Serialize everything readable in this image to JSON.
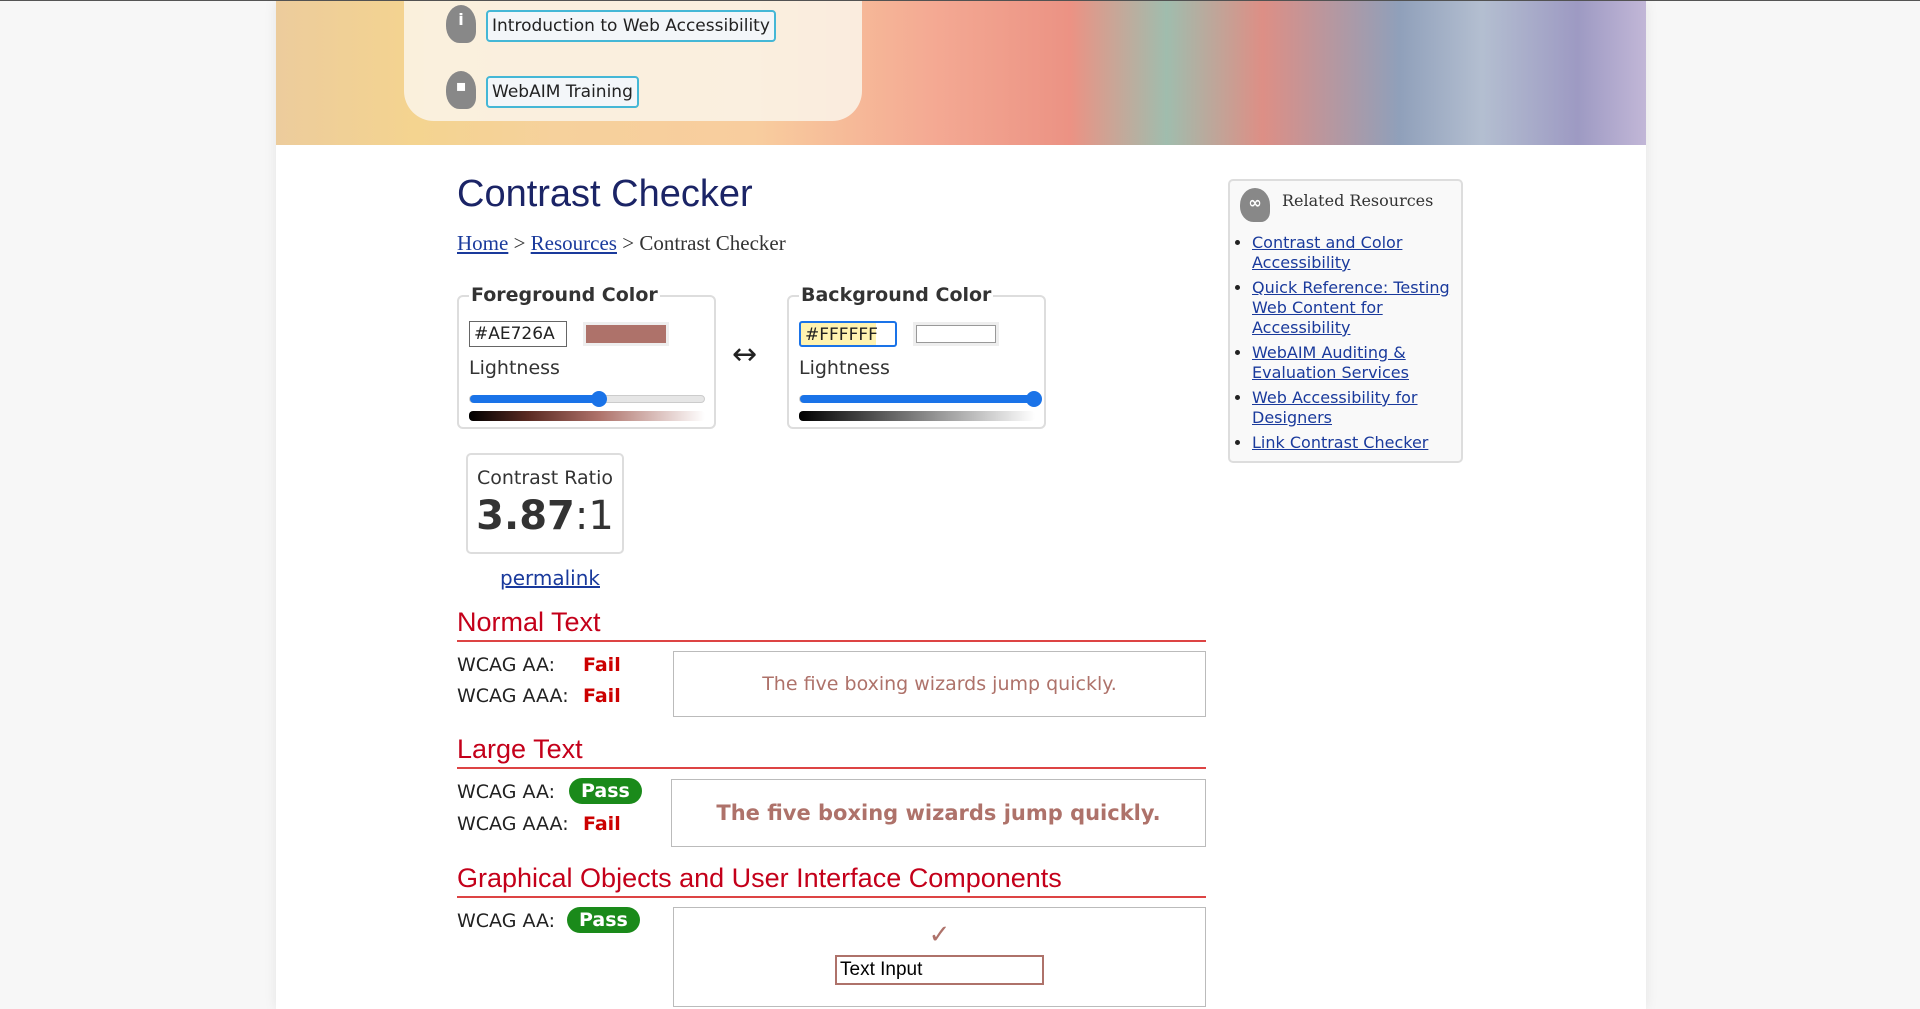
{
  "banner": {
    "links": [
      "Introduction to Web Accessibility",
      "WebAIM Training"
    ]
  },
  "page": {
    "title": "Contrast Checker",
    "breadcrumb": [
      "Home",
      "Resources",
      "Contrast Checker"
    ],
    "sep": ">"
  },
  "foreground": {
    "legend": "Foreground Color",
    "hex": "#AE726A",
    "lightness_label": "Lightness",
    "lightness_pct": 55,
    "color": "#AE726A"
  },
  "background": {
    "legend": "Background Color",
    "hex": "#FFFFFF",
    "lightness_label": "Lightness",
    "lightness_pct": 100,
    "color": "#FFFFFF"
  },
  "swap_symbol": "↔",
  "ratio": {
    "label": "Contrast Ratio",
    "value": "3.87",
    "suffix": ":1",
    "permalink": "permalink"
  },
  "normal": {
    "heading": "Normal Text",
    "aa_label": "WCAG AA:",
    "aa": "Fail",
    "aaa_label": "WCAG AAA:",
    "aaa": "Fail",
    "sample": "The five boxing wizards jump quickly."
  },
  "large": {
    "heading": "Large Text",
    "aa_label": "WCAG AA:",
    "aa": "Pass",
    "aaa_label": "WCAG AAA:",
    "aaa": "Fail",
    "sample": "The five boxing wizards jump quickly."
  },
  "graphical": {
    "heading": "Graphical Objects and User Interface Components",
    "aa_label": "WCAG AA:",
    "aa": "Pass",
    "check": "✓",
    "input_value": "Text Input"
  },
  "sidebar": {
    "title": "Related Resources",
    "links": [
      "Contrast and Color Accessibility",
      "Quick Reference: Testing Web Content for Accessibility",
      "WebAIM Auditing & Evaluation Services",
      "Web Accessibility for Designers",
      "Link Contrast Checker"
    ]
  }
}
